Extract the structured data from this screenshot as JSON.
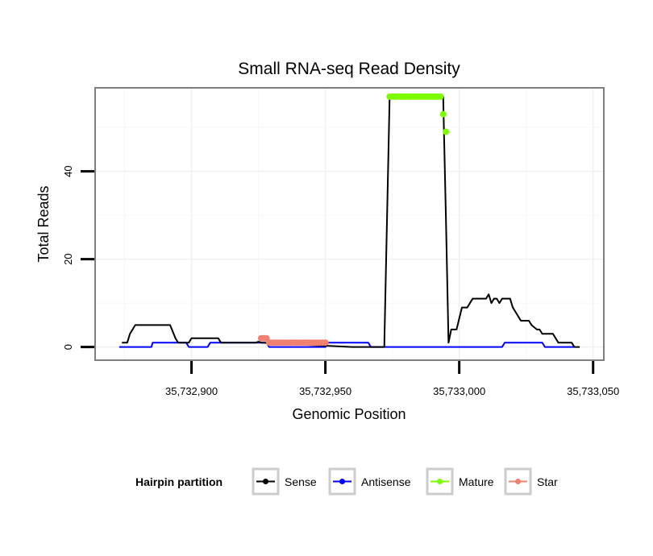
{
  "chart_data": {
    "type": "line",
    "title": "Small RNA-seq Read Density",
    "xlabel": "Genomic Position",
    "ylabel": "Total Reads",
    "xlim": [
      35732864,
      35733054
    ],
    "ylim": [
      -3,
      59
    ],
    "x_ticks": [
      35732900,
      35732950,
      35733000,
      35733050
    ],
    "x_tick_labels": [
      "35,732,900",
      "35,732,950",
      "35,733,000",
      "35,733,050"
    ],
    "y_ticks": [
      0,
      20,
      40
    ],
    "y_tick_labels": [
      "0",
      "20",
      "40"
    ],
    "legend": {
      "title": "Hairpin partition",
      "position": "bottom",
      "entries": [
        {
          "name": "Sense",
          "color": "#000000"
        },
        {
          "name": "Antisense",
          "color": "#0000ff"
        },
        {
          "name": "Mature",
          "color": "#7cfc00"
        },
        {
          "name": "Star",
          "color": "#f08070"
        }
      ]
    },
    "series": [
      {
        "name": "Sense",
        "color": "#000000",
        "style": "line",
        "points": [
          [
            35732874,
            1
          ],
          [
            35732876,
            1
          ],
          [
            35732877,
            3
          ],
          [
            35732879,
            5
          ],
          [
            35732887,
            5
          ],
          [
            35732892,
            5
          ],
          [
            35732894,
            2
          ],
          [
            35732895,
            1
          ],
          [
            35732896,
            1
          ],
          [
            35732899,
            1
          ],
          [
            35732900,
            2
          ],
          [
            35732910,
            2
          ],
          [
            35732911,
            1
          ],
          [
            35732919,
            1
          ],
          [
            35732924,
            1
          ],
          [
            35732925,
            1.2
          ],
          [
            35732926,
            1
          ],
          [
            35732960,
            0
          ],
          [
            35732972,
            0
          ],
          [
            35732974,
            57
          ],
          [
            35732994,
            57
          ],
          [
            35732995,
            30
          ],
          [
            35732996,
            1
          ],
          [
            35732997,
            4
          ],
          [
            35732999,
            4
          ],
          [
            35733001,
            9
          ],
          [
            35733003,
            9
          ],
          [
            35733005,
            11
          ],
          [
            35733010,
            11
          ],
          [
            35733011,
            12
          ],
          [
            35733012,
            10
          ],
          [
            35733013,
            11
          ],
          [
            35733014,
            11
          ],
          [
            35733015,
            10
          ],
          [
            35733016,
            11
          ],
          [
            35733019,
            11
          ],
          [
            35733020,
            9
          ],
          [
            35733021,
            8
          ],
          [
            35733023,
            6
          ],
          [
            35733026,
            6
          ],
          [
            35733027,
            5
          ],
          [
            35733029,
            4
          ],
          [
            35733030,
            4
          ],
          [
            35733031,
            3
          ],
          [
            35733035,
            3
          ],
          [
            35733036,
            2
          ],
          [
            35733037,
            1
          ],
          [
            35733042,
            1
          ],
          [
            35733043,
            0
          ],
          [
            35733045,
            0
          ]
        ]
      },
      {
        "name": "Antisense",
        "color": "#0000ff",
        "style": "line",
        "points": [
          [
            35732873,
            0
          ],
          [
            35732885,
            0
          ],
          [
            35732885.5,
            1
          ],
          [
            35732898,
            1
          ],
          [
            35732899,
            0
          ],
          [
            35732906,
            0
          ],
          [
            35732907,
            1
          ],
          [
            35732928,
            1
          ],
          [
            35732929,
            0
          ],
          [
            35732950,
            0
          ],
          [
            35732951,
            1
          ],
          [
            35732966,
            1
          ],
          [
            35732967,
            0
          ],
          [
            35733016,
            0
          ],
          [
            35733017,
            1
          ],
          [
            35733031,
            1
          ],
          [
            35733032,
            0
          ],
          [
            35733043,
            0
          ]
        ]
      },
      {
        "name": "Mature",
        "color": "#7cfc00",
        "style": "points",
        "x": [
          35732974,
          35732975,
          35732976,
          35732977,
          35732978,
          35732979,
          35732980,
          35732981,
          35732982,
          35732983,
          35732984,
          35732985,
          35732986,
          35732987,
          35732988,
          35732989,
          35732990,
          35732991,
          35732992,
          35732993,
          35732994,
          35732995
        ],
        "y": [
          57,
          57,
          57,
          57,
          57,
          57,
          57,
          57,
          57,
          57,
          57,
          57,
          57,
          57,
          57,
          57,
          57,
          57,
          57,
          57,
          53,
          49
        ]
      },
      {
        "name": "Star",
        "color": "#f08070",
        "style": "points",
        "x": [
          35732926,
          35732927,
          35732928,
          35732929,
          35732930,
          35732931,
          35732932,
          35732933,
          35732934,
          35732935,
          35732936,
          35732937,
          35732938,
          35732939,
          35732940,
          35732941,
          35732942,
          35732943,
          35732944,
          35732945,
          35732946,
          35732947,
          35732948,
          35732949,
          35732950
        ],
        "y": [
          2,
          2,
          2,
          1,
          1,
          1,
          1,
          1,
          1,
          1,
          1,
          1,
          1,
          1,
          1,
          1,
          1,
          1,
          1,
          1,
          1,
          1,
          1,
          1,
          1
        ]
      }
    ]
  }
}
